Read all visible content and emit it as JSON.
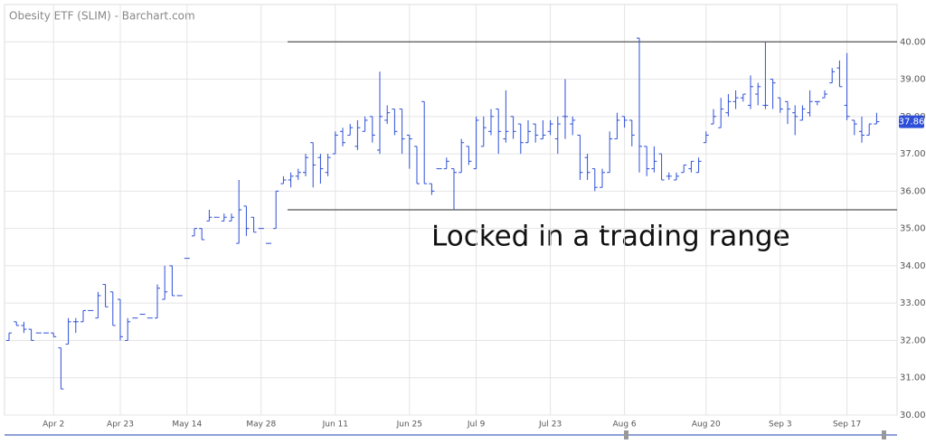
{
  "chart_data": {
    "type": "ohlc",
    "title": "Obesity ETF (SLIM) - Barchart.com",
    "annotation": "Locked in a trading range",
    "reference_lines": [
      40,
      35.5
    ],
    "last_price": 37.86,
    "color": "#2e4fd8",
    "grid": true,
    "ylim": [
      30,
      41
    ],
    "yticks": [
      {
        "value": 30,
        "label": "30.00"
      },
      {
        "value": 31,
        "label": "31.00"
      },
      {
        "value": 32,
        "label": "32.00"
      },
      {
        "value": 33,
        "label": "33.00"
      },
      {
        "value": 34,
        "label": "34.00"
      },
      {
        "value": 35,
        "label": "35.00"
      },
      {
        "value": 36,
        "label": "36.00"
      },
      {
        "value": 37,
        "label": "37.00"
      },
      {
        "value": 38,
        "label": "38.00"
      },
      {
        "value": 39,
        "label": "39.00"
      },
      {
        "value": 40,
        "label": "40.00"
      }
    ],
    "categories": [
      null,
      null,
      null,
      null,
      null,
      null,
      "Apr 2",
      null,
      null,
      null,
      null,
      null,
      null,
      null,
      null,
      "Apr 23",
      null,
      null,
      null,
      null,
      null,
      null,
      null,
      null,
      "May 14",
      null,
      null,
      null,
      null,
      null,
      null,
      null,
      null,
      null,
      "May 28",
      null,
      null,
      null,
      null,
      null,
      null,
      null,
      null,
      null,
      "Jun 11",
      null,
      null,
      null,
      null,
      null,
      null,
      null,
      null,
      null,
      "Jun 25",
      null,
      null,
      null,
      null,
      null,
      null,
      null,
      null,
      "Jul 9",
      null,
      null,
      null,
      null,
      null,
      null,
      null,
      null,
      null,
      "Jul 23",
      null,
      null,
      null,
      null,
      null,
      null,
      null,
      null,
      null,
      "Aug 6",
      null,
      null,
      null,
      null,
      null,
      null,
      null,
      null,
      null,
      null,
      "Aug 20",
      null,
      null,
      null,
      null,
      null,
      null,
      null,
      null,
      null,
      "Sep 3",
      null,
      null,
      null,
      null,
      null,
      null,
      null,
      null,
      "Sep 17",
      null,
      null,
      null,
      null
    ],
    "open": [
      32.0,
      32.5,
      32.4,
      32.3,
      32.2,
      32.2,
      32.2,
      31.8,
      31.9,
      32.5,
      32.5,
      32.8,
      32.6,
      33.5,
      33.3,
      33.1,
      32.0,
      32.6,
      32.7,
      32.6,
      32.6,
      33.1,
      34.0,
      33.2,
      34.2,
      34.8,
      35.0,
      35.2,
      35.3,
      35.2,
      35.2,
      34.6,
      35.6,
      35.3,
      35.0,
      34.6,
      35.0,
      36.2,
      36.3,
      36.4,
      36.5,
      37.3,
      36.9,
      36.5,
      37.0,
      37.6,
      37.5,
      37.2,
      37.6,
      38.0,
      37.1,
      37.9,
      38.2,
      38.2,
      37.5,
      37.2,
      38.4,
      36.2,
      36.6,
      36.6,
      36.6,
      36.5,
      37.2,
      36.6,
      37.2,
      37.6,
      38.2,
      37.4,
      38.0,
      37.8,
      37.3,
      37.8,
      37.4,
      37.6,
      37.4,
      38.0,
      37.8,
      37.5,
      36.9,
      36.6,
      36.1,
      36.5,
      37.4,
      38.0,
      37.9,
      40.1,
      37.2,
      36.6,
      37.0,
      36.4,
      36.3,
      36.5,
      36.6,
      36.5,
      37.3,
      37.8,
      37.7,
      38.1,
      38.4,
      38.5,
      38.3,
      38.6,
      38.3,
      39.0,
      38.5,
      38.4,
      38.1,
      37.9,
      38.1,
      38.4,
      38.5,
      38.9,
      39.3,
      38.3,
      37.9,
      37.6,
      37.5,
      37.8
    ],
    "high": [
      32.2,
      32.5,
      32.5,
      32.3,
      32.2,
      32.2,
      32.2,
      31.8,
      32.6,
      32.6,
      32.8,
      32.8,
      33.3,
      33.5,
      33.3,
      33.1,
      32.6,
      32.6,
      32.7,
      32.6,
      33.5,
      34.0,
      34.0,
      33.2,
      34.2,
      35.0,
      35.0,
      35.5,
      35.3,
      35.4,
      35.4,
      36.3,
      35.6,
      35.3,
      35.0,
      34.6,
      36.0,
      36.4,
      36.5,
      36.6,
      37.0,
      37.3,
      37.0,
      37.0,
      37.6,
      37.7,
      37.8,
      37.9,
      38.0,
      38.0,
      39.2,
      38.3,
      38.2,
      38.2,
      37.5,
      37.2,
      38.4,
      36.2,
      36.6,
      36.9,
      36.6,
      37.4,
      37.2,
      38.0,
      38.0,
      38.2,
      38.2,
      38.7,
      38.0,
      37.8,
      37.9,
      37.8,
      37.9,
      37.9,
      38.0,
      39.0,
      38.0,
      37.5,
      37.0,
      36.6,
      36.6,
      37.6,
      38.1,
      38.0,
      37.9,
      40.1,
      37.2,
      37.2,
      37.0,
      36.5,
      36.5,
      36.7,
      36.8,
      36.9,
      37.6,
      38.2,
      38.5,
      38.6,
      38.7,
      38.6,
      39.1,
      38.9,
      40.0,
      39.0,
      38.5,
      38.4,
      38.3,
      38.3,
      38.7,
      38.4,
      38.7,
      39.3,
      39.5,
      39.7,
      37.9,
      38.0,
      37.8,
      38.1
    ],
    "low": [
      32.0,
      32.4,
      32.2,
      32.0,
      32.2,
      32.2,
      32.1,
      30.7,
      31.9,
      32.2,
      32.5,
      32.8,
      32.6,
      32.9,
      32.4,
      32.0,
      32.0,
      32.6,
      32.7,
      32.6,
      32.6,
      33.1,
      33.2,
      33.2,
      34.2,
      34.8,
      34.7,
      35.2,
      35.3,
      35.2,
      35.2,
      34.6,
      34.8,
      34.9,
      35.0,
      34.6,
      35.0,
      36.2,
      36.1,
      36.3,
      36.4,
      36.1,
      36.2,
      36.4,
      37.0,
      37.2,
      37.5,
      37.1,
      37.6,
      37.3,
      37.0,
      37.8,
      37.5,
      37.0,
      36.6,
      36.2,
      36.2,
      35.9,
      36.6,
      36.6,
      35.5,
      36.5,
      36.7,
      36.6,
      37.2,
      37.5,
      37.0,
      37.3,
      37.4,
      37.0,
      37.3,
      37.3,
      37.4,
      37.5,
      37.0,
      37.4,
      37.5,
      36.3,
      36.3,
      36.0,
      36.1,
      36.5,
      37.4,
      37.7,
      37.2,
      36.5,
      36.4,
      36.5,
      36.3,
      36.3,
      36.3,
      36.5,
      36.5,
      36.5,
      37.3,
      37.8,
      37.7,
      38.0,
      38.2,
      38.4,
      38.2,
      38.3,
      38.2,
      38.2,
      38.1,
      37.8,
      37.5,
      37.9,
      38.0,
      38.3,
      38.5,
      38.9,
      38.8,
      37.9,
      37.5,
      37.3,
      37.5,
      37.8
    ],
    "close": [
      32.2,
      32.4,
      32.3,
      32.0,
      32.2,
      32.2,
      32.1,
      30.7,
      32.5,
      32.5,
      32.8,
      32.8,
      33.2,
      32.9,
      32.4,
      32.1,
      32.5,
      32.6,
      32.7,
      32.6,
      33.4,
      33.3,
      33.2,
      33.2,
      34.2,
      35.0,
      34.7,
      35.3,
      35.3,
      35.3,
      35.3,
      35.5,
      35.0,
      34.9,
      35.0,
      34.6,
      36.0,
      36.3,
      36.4,
      36.5,
      36.9,
      36.7,
      36.6,
      36.9,
      37.5,
      37.3,
      37.7,
      37.7,
      37.9,
      37.5,
      38.0,
      38.1,
      37.6,
      37.4,
      37.4,
      36.2,
      36.2,
      36.0,
      36.6,
      36.8,
      36.5,
      37.3,
      36.8,
      37.9,
      37.7,
      38.0,
      37.6,
      37.6,
      37.6,
      37.3,
      37.6,
      37.5,
      37.5,
      37.8,
      37.8,
      38.0,
      37.9,
      36.5,
      36.5,
      36.1,
      36.5,
      37.4,
      37.9,
      37.9,
      37.5,
      37.2,
      36.6,
      36.8,
      36.3,
      36.4,
      36.4,
      36.7,
      36.8,
      36.8,
      37.5,
      38.0,
      38.2,
      38.4,
      38.5,
      38.6,
      38.8,
      38.8,
      38.3,
      38.9,
      38.2,
      38.2,
      38.0,
      38.2,
      38.4,
      38.4,
      38.6,
      39.2,
      38.8,
      38.0,
      37.8,
      37.5,
      37.8,
      37.86
    ]
  }
}
